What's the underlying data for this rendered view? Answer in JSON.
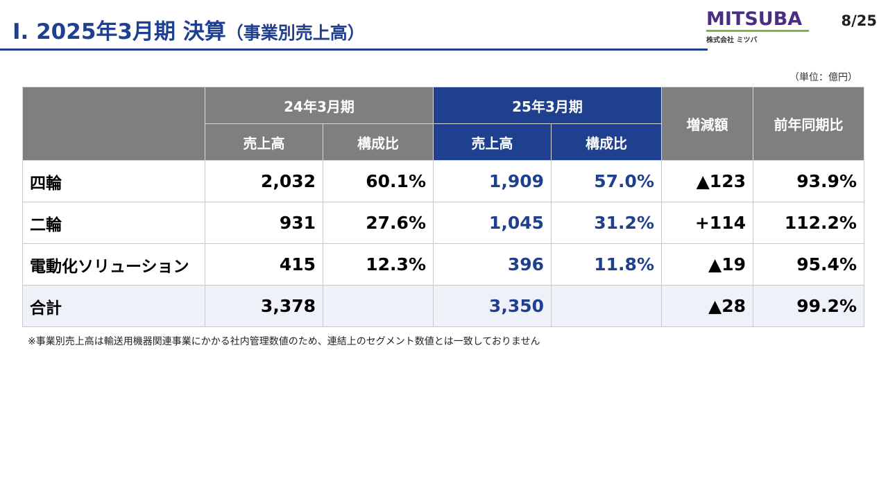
{
  "header": {
    "title_main": "Ⅰ. 2025年3月期 決算",
    "title_sub": "（事業別売上高）",
    "page_number": "8/25"
  },
  "logo": {
    "wordmark": "MITSUBA",
    "company_name": "株式会社 ミツバ"
  },
  "unit_note": "（単位：億円）",
  "table": {
    "period_prev": "24年3月期",
    "period_curr": "25年3月期",
    "col_sales": "売上高",
    "col_ratio": "構成比",
    "col_change": "増減額",
    "col_yoy": "前年同期比",
    "rows": [
      {
        "label": "四輪",
        "prev_sales": "2,032",
        "prev_ratio": "60.1%",
        "curr_sales": "1,909",
        "curr_ratio": "57.0%",
        "change": "▲123",
        "yoy": "93.9%"
      },
      {
        "label": "二輪",
        "prev_sales": "931",
        "prev_ratio": "27.6%",
        "curr_sales": "1,045",
        "curr_ratio": "31.2%",
        "change": "+114",
        "yoy": "112.2%"
      },
      {
        "label": "電動化ソリューション",
        "prev_sales": "415",
        "prev_ratio": "12.3%",
        "curr_sales": "396",
        "curr_ratio": "11.8%",
        "change": "▲19",
        "yoy": "95.4%"
      }
    ],
    "total": {
      "label": "合計",
      "prev_sales": "3,378",
      "curr_sales": "3,350",
      "change": "▲28",
      "yoy": "99.2%"
    }
  },
  "footnote": "※事業別売上高は輸送用機器関連事業にかかる社内管理数値のため、連結上のセグメント数値とは一致しておりません",
  "colors": {
    "accent_navy": "#1f3f8f",
    "header_gray": "#7f7f7f",
    "logo_purple": "#4b2e83",
    "logo_green": "#7cb342"
  }
}
